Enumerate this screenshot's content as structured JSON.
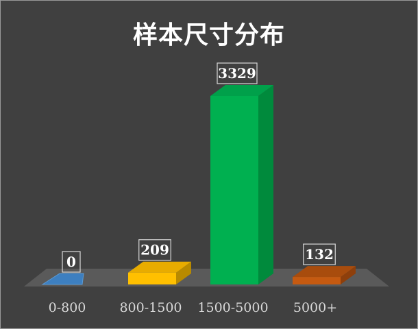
{
  "chart_data": {
    "type": "bar",
    "title": "样本尺寸分布",
    "xlabel": "",
    "ylabel": "",
    "categories": [
      "0-800",
      "800-1500",
      "1500-5000",
      "5000+"
    ],
    "values": [
      0,
      209,
      3329,
      132
    ],
    "ylim": [
      0,
      3329
    ],
    "grid": false,
    "legend": "none",
    "colors": {
      "front": [
        "#2e6da4",
        "#ffc000",
        "#00b050",
        "#c55a11"
      ],
      "side": [
        "#245a8a",
        "#b88a00",
        "#008a3c",
        "#8e3f0b"
      ],
      "top": [
        "#3d7fc0",
        "#e8ac00",
        "#00a04a",
        "#a84c0d"
      ]
    }
  }
}
